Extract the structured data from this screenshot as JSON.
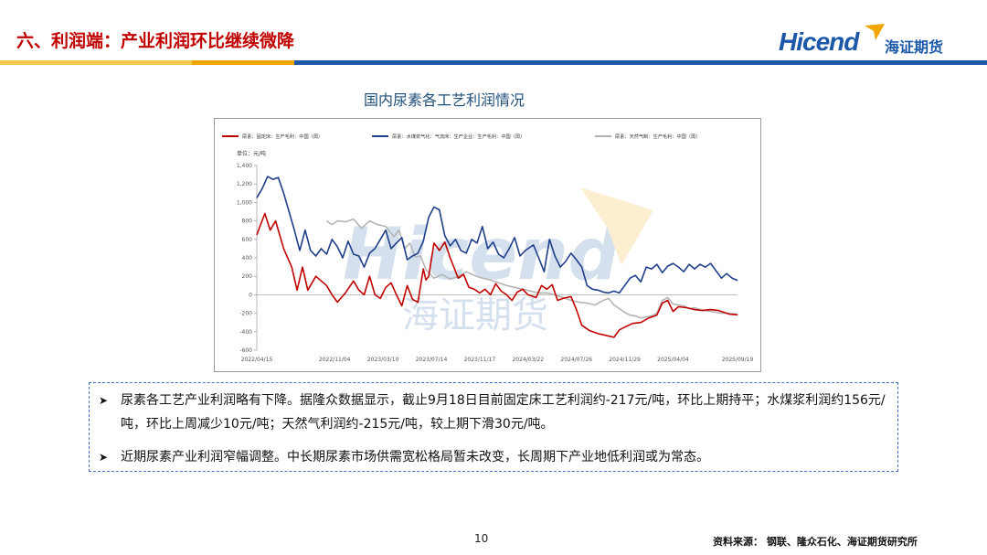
{
  "slide": {
    "title": "六、利润端：产业利润环比继续微降",
    "logo_en": "Hicend",
    "logo_cn": "海证期货",
    "page_number": "10",
    "source": "资料来源： 钢联、隆众石化、海证期货研究所",
    "band_colors": [
      "#f2c94c",
      "#f0a500",
      "#1b58a8"
    ]
  },
  "chart": {
    "title": "国内尿素各工艺利润情况",
    "watermark_en": "Hicend",
    "watermark_cn": "海证期货"
  },
  "notes": [
    "尿素各工艺产业利润略有下降。据隆众数据显示，截止9月18日目前固定床工艺利润约-217元/吨，环比上期持平；水煤浆利润约156元/吨，环比上周减少10元/吨；天然气利润约-215元/吨，较上期下滑30元/吨。",
    "近期尿素产业利润窄幅调整。中长期尿素市场供需宽松格局暂未改变，长周期下产业地低利润或为常态。"
  ],
  "chart_data": {
    "type": "line",
    "ylabel": "单位：元/吨",
    "ylim": [
      -600,
      1400
    ],
    "yticks": [
      -600,
      -400,
      -200,
      0,
      200,
      400,
      600,
      800,
      1000,
      1200,
      1400
    ],
    "xtick_labels": [
      "2022/04/15",
      "2022/11/04",
      "2023/03/10",
      "2023/07/14",
      "2023/11/17",
      "2024/03/22",
      "2024/07/26",
      "2024/11/29",
      "2025/04/04",
      "2025/09/19"
    ],
    "xtick_positions": [
      0,
      29,
      47,
      65,
      83,
      101,
      119,
      137,
      155,
      179
    ],
    "x_count": 180,
    "series": [
      {
        "name": "尿素：固定床：生产毛利：中国（周）",
        "color": "#c00000",
        "anchors": [
          [
            0,
            650
          ],
          [
            3,
            880
          ],
          [
            5,
            700
          ],
          [
            7,
            800
          ],
          [
            10,
            500
          ],
          [
            13,
            300
          ],
          [
            15,
            50
          ],
          [
            17,
            300
          ],
          [
            19,
            50
          ],
          [
            22,
            200
          ],
          [
            26,
            100
          ],
          [
            28,
            0
          ],
          [
            30,
            -80
          ],
          [
            33,
            20
          ],
          [
            36,
            150
          ],
          [
            38,
            50
          ],
          [
            40,
            0
          ],
          [
            42,
            200
          ],
          [
            44,
            0
          ],
          [
            46,
            -40
          ],
          [
            48,
            80
          ],
          [
            50,
            130
          ],
          [
            52,
            0
          ],
          [
            54,
            -120
          ],
          [
            56,
            100
          ],
          [
            58,
            -50
          ],
          [
            60,
            -80
          ],
          [
            62,
            280
          ],
          [
            63,
            160
          ],
          [
            64,
            200
          ],
          [
            66,
            560
          ],
          [
            68,
            480
          ],
          [
            70,
            570
          ],
          [
            72,
            400
          ],
          [
            75,
            180
          ],
          [
            77,
            220
          ],
          [
            79,
            80
          ],
          [
            81,
            60
          ],
          [
            83,
            20
          ],
          [
            85,
            60
          ],
          [
            87,
            0
          ],
          [
            89,
            120
          ],
          [
            91,
            40
          ],
          [
            93,
            0
          ],
          [
            95,
            -60
          ],
          [
            97,
            30
          ],
          [
            99,
            60
          ],
          [
            101,
            0
          ],
          [
            104,
            -30
          ],
          [
            106,
            100
          ],
          [
            108,
            60
          ],
          [
            110,
            110
          ],
          [
            112,
            -60
          ],
          [
            114,
            -40
          ],
          [
            117,
            -20
          ],
          [
            119,
            -160
          ],
          [
            121,
            -330
          ],
          [
            124,
            -390
          ],
          [
            127,
            -420
          ],
          [
            130,
            -440
          ],
          [
            133,
            -460
          ],
          [
            135,
            -380
          ],
          [
            137,
            -350
          ],
          [
            140,
            -310
          ],
          [
            143,
            -300
          ],
          [
            146,
            -250
          ],
          [
            149,
            -220
          ],
          [
            151,
            -90
          ],
          [
            153,
            -60
          ],
          [
            155,
            -180
          ],
          [
            157,
            -130
          ],
          [
            160,
            -140
          ],
          [
            163,
            -160
          ],
          [
            166,
            -170
          ],
          [
            169,
            -160
          ],
          [
            172,
            -170
          ],
          [
            174,
            -190
          ],
          [
            176,
            -210
          ],
          [
            179,
            -217
          ]
        ]
      },
      {
        "name": "尿素：水煤浆气化：气流床：生产企业：生产毛利：中国（周）",
        "color": "#1f3e8a",
        "anchors": [
          [
            0,
            1050
          ],
          [
            2,
            1150
          ],
          [
            4,
            1280
          ],
          [
            6,
            1250
          ],
          [
            8,
            1270
          ],
          [
            10,
            1100
          ],
          [
            12,
            900
          ],
          [
            14,
            700
          ],
          [
            16,
            480
          ],
          [
            18,
            700
          ],
          [
            20,
            480
          ],
          [
            22,
            420
          ],
          [
            24,
            500
          ],
          [
            26,
            440
          ],
          [
            28,
            600
          ],
          [
            30,
            520
          ],
          [
            32,
            400
          ],
          [
            34,
            580
          ],
          [
            36,
            440
          ],
          [
            38,
            420
          ],
          [
            40,
            300
          ],
          [
            42,
            450
          ],
          [
            44,
            500
          ],
          [
            46,
            600
          ],
          [
            48,
            700
          ],
          [
            50,
            500
          ],
          [
            52,
            560
          ],
          [
            54,
            620
          ],
          [
            56,
            380
          ],
          [
            58,
            420
          ],
          [
            60,
            450
          ],
          [
            62,
            580
          ],
          [
            64,
            840
          ],
          [
            66,
            950
          ],
          [
            68,
            920
          ],
          [
            70,
            640
          ],
          [
            72,
            530
          ],
          [
            74,
            600
          ],
          [
            76,
            480
          ],
          [
            78,
            450
          ],
          [
            80,
            600
          ],
          [
            82,
            560
          ],
          [
            84,
            740
          ],
          [
            86,
            500
          ],
          [
            88,
            570
          ],
          [
            90,
            440
          ],
          [
            92,
            400
          ],
          [
            94,
            500
          ],
          [
            96,
            620
          ],
          [
            98,
            420
          ],
          [
            100,
            480
          ],
          [
            103,
            540
          ],
          [
            105,
            400
          ],
          [
            107,
            250
          ],
          [
            109,
            600
          ],
          [
            111,
            420
          ],
          [
            113,
            300
          ],
          [
            115,
            360
          ],
          [
            117,
            450
          ],
          [
            119,
            380
          ],
          [
            121,
            300
          ],
          [
            123,
            100
          ],
          [
            125,
            60
          ],
          [
            127,
            50
          ],
          [
            129,
            30
          ],
          [
            131,
            20
          ],
          [
            133,
            40
          ],
          [
            135,
            20
          ],
          [
            137,
            100
          ],
          [
            139,
            180
          ],
          [
            141,
            210
          ],
          [
            143,
            140
          ],
          [
            145,
            300
          ],
          [
            147,
            280
          ],
          [
            149,
            330
          ],
          [
            151,
            240
          ],
          [
            153,
            310
          ],
          [
            155,
            340
          ],
          [
            157,
            300
          ],
          [
            159,
            250
          ],
          [
            161,
            330
          ],
          [
            163,
            280
          ],
          [
            165,
            330
          ],
          [
            167,
            300
          ],
          [
            169,
            340
          ],
          [
            171,
            260
          ],
          [
            173,
            180
          ],
          [
            175,
            230
          ],
          [
            177,
            180
          ],
          [
            179,
            156
          ]
        ]
      },
      {
        "name": "尿素：天然气制：生产毛利：中国（周）",
        "color": "#b4b4b4",
        "anchors": [
          [
            26,
            800
          ],
          [
            28,
            760
          ],
          [
            30,
            800
          ],
          [
            33,
            790
          ],
          [
            36,
            820
          ],
          [
            39,
            720
          ],
          [
            42,
            800
          ],
          [
            45,
            760
          ],
          [
            48,
            740
          ],
          [
            51,
            630
          ],
          [
            53,
            700
          ],
          [
            55,
            500
          ],
          [
            57,
            560
          ],
          [
            59,
            410
          ],
          [
            61,
            420
          ],
          [
            63,
            270
          ],
          [
            66,
            180
          ],
          [
            69,
            220
          ],
          [
            72,
            170
          ],
          [
            75,
            200
          ],
          [
            78,
            250
          ],
          [
            81,
            210
          ],
          [
            84,
            180
          ],
          [
            87,
            160
          ],
          [
            90,
            130
          ],
          [
            93,
            100
          ],
          [
            96,
            80
          ],
          [
            99,
            60
          ],
          [
            102,
            40
          ],
          [
            105,
            20
          ],
          [
            108,
            20
          ],
          [
            111,
            0
          ],
          [
            114,
            -30
          ],
          [
            117,
            -60
          ],
          [
            120,
            -80
          ],
          [
            123,
            -90
          ],
          [
            126,
            -110
          ],
          [
            129,
            -60
          ],
          [
            131,
            -40
          ],
          [
            133,
            -110
          ],
          [
            135,
            -150
          ],
          [
            137,
            -190
          ],
          [
            139,
            -220
          ],
          [
            141,
            -230
          ],
          [
            143,
            -250
          ],
          [
            145,
            -240
          ],
          [
            147,
            -230
          ],
          [
            149,
            -200
          ],
          [
            151,
            -60
          ],
          [
            153,
            -30
          ],
          [
            155,
            -100
          ],
          [
            157,
            -110
          ],
          [
            159,
            -120
          ],
          [
            161,
            -150
          ],
          [
            163,
            -140
          ],
          [
            165,
            -160
          ],
          [
            167,
            -170
          ],
          [
            169,
            -180
          ],
          [
            171,
            -190
          ],
          [
            173,
            -200
          ],
          [
            175,
            -200
          ],
          [
            177,
            -205
          ],
          [
            179,
            -215
          ]
        ]
      }
    ]
  }
}
